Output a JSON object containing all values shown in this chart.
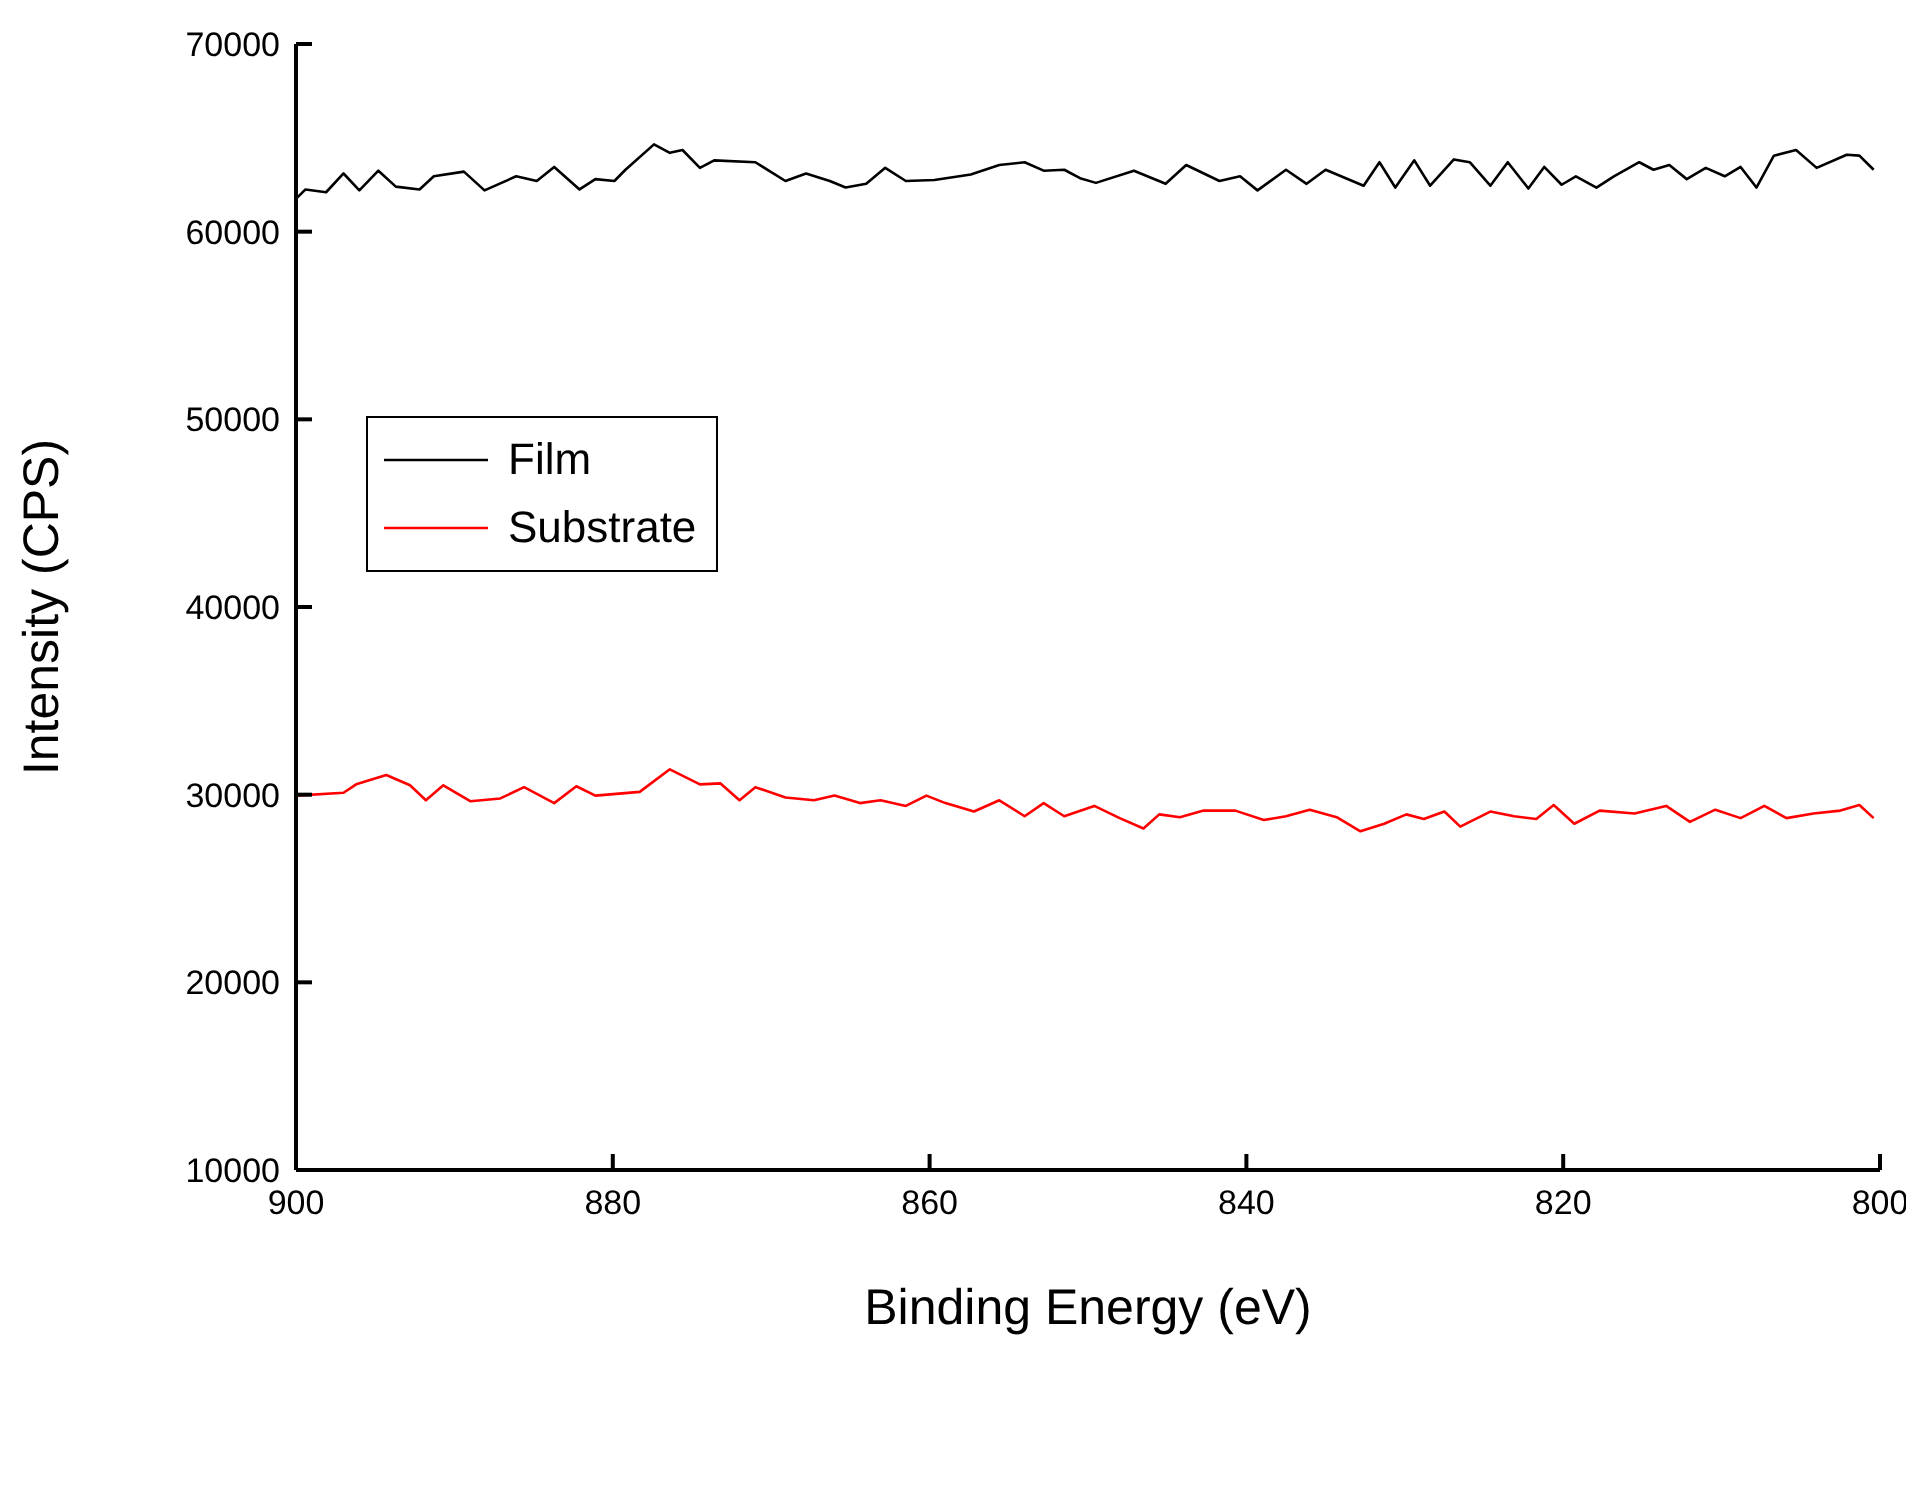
{
  "chart_data": {
    "type": "line",
    "xlabel": "Binding Energy (eV)",
    "ylabel": "Intensity (CPS)",
    "xlim": [
      900,
      800
    ],
    "xticks": [
      900,
      880,
      860,
      840,
      820,
      800
    ],
    "ylim": [
      10000,
      70000
    ],
    "yticks": [
      10000,
      20000,
      30000,
      40000,
      50000,
      60000,
      70000
    ],
    "legend": "left",
    "marker": "none",
    "line_style": "solid",
    "series": [
      {
        "name": "Film",
        "color": "#000000",
        "x": [
          900,
          899.4,
          898.1,
          897.0,
          896.0,
          894.8,
          893.7,
          892.2,
          891.3,
          889.4,
          888.1,
          886.1,
          884.8,
          883.7,
          882.1,
          881.1,
          879.9,
          879.2,
          877.4,
          876.4,
          875.6,
          874.5,
          873.6,
          871.0,
          869.1,
          867.8,
          866.3,
          865.3,
          864.0,
          862.8,
          861.5,
          859.7,
          857.4,
          855.6,
          854.0,
          852.8,
          851.5,
          850.5,
          849.5,
          847.1,
          845.1,
          843.8,
          841.7,
          840.4,
          839.3,
          837.5,
          836.2,
          835.0,
          832.6,
          831.6,
          830.6,
          829.4,
          828.4,
          826.9,
          825.9,
          824.6,
          823.5,
          822.2,
          821.2,
          820.1,
          819.2,
          817.9,
          816.8,
          815.2,
          814.3,
          813.3,
          812.2,
          811.0,
          809.8,
          808.8,
          807.8,
          806.7,
          805.3,
          804.0,
          802.1,
          801.3,
          800.4
        ],
        "values": [
          61750,
          62250,
          62100,
          63100,
          62200,
          63250,
          62400,
          62250,
          62950,
          63200,
          62200,
          62950,
          62700,
          63450,
          62250,
          62800,
          62700,
          63300,
          64650,
          64200,
          64350,
          63400,
          63800,
          63700,
          62700,
          63100,
          62700,
          62350,
          62550,
          63400,
          62700,
          62750,
          63050,
          63550,
          63700,
          63250,
          63300,
          62850,
          62600,
          63250,
          62550,
          63550,
          62700,
          62950,
          62200,
          63300,
          62550,
          63300,
          62450,
          63700,
          62350,
          63800,
          62450,
          63850,
          63700,
          62450,
          63700,
          62300,
          63450,
          62500,
          62950,
          62350,
          62950,
          63700,
          63300,
          63550,
          62800,
          63400,
          62950,
          63450,
          62350,
          64050,
          64350,
          63400,
          64100,
          64050,
          63300
        ]
      },
      {
        "name": "Substrate",
        "color": "#ff0000",
        "x": [
          900,
          897.0,
          896.2,
          894.3,
          892.8,
          891.8,
          890.7,
          889.0,
          887.1,
          885.6,
          883.7,
          882.3,
          881.1,
          878.3,
          876.4,
          874.5,
          873.2,
          872.0,
          871.0,
          869.1,
          867.3,
          866.0,
          864.4,
          863.1,
          861.5,
          860.2,
          859.0,
          857.2,
          855.6,
          854.0,
          852.8,
          851.5,
          849.6,
          848.0,
          846.5,
          845.5,
          844.2,
          842.7,
          840.7,
          838.9,
          837.5,
          836.0,
          834.3,
          832.8,
          831.3,
          829.9,
          828.8,
          827.5,
          826.5,
          824.6,
          823.1,
          821.7,
          820.6,
          819.3,
          817.7,
          815.5,
          813.5,
          812.0,
          810.4,
          808.8,
          807.3,
          805.9,
          804.2,
          802.5,
          801.3,
          800.4
        ],
        "values": [
          29950,
          30100,
          30550,
          31050,
          30500,
          29700,
          30500,
          29650,
          29800,
          30400,
          29550,
          30450,
          29950,
          30150,
          31350,
          30550,
          30600,
          29700,
          30400,
          29850,
          29700,
          29950,
          29550,
          29700,
          29400,
          29950,
          29550,
          29100,
          29700,
          28850,
          29550,
          28850,
          29400,
          28750,
          28200,
          28950,
          28800,
          29150,
          29150,
          28650,
          28850,
          29200,
          28800,
          28050,
          28450,
          28950,
          28700,
          29100,
          28300,
          29100,
          28850,
          28700,
          29450,
          28450,
          29150,
          29000,
          29400,
          28550,
          29200,
          28750,
          29400,
          28750,
          29000,
          29150,
          29450,
          28750
        ]
      }
    ]
  }
}
